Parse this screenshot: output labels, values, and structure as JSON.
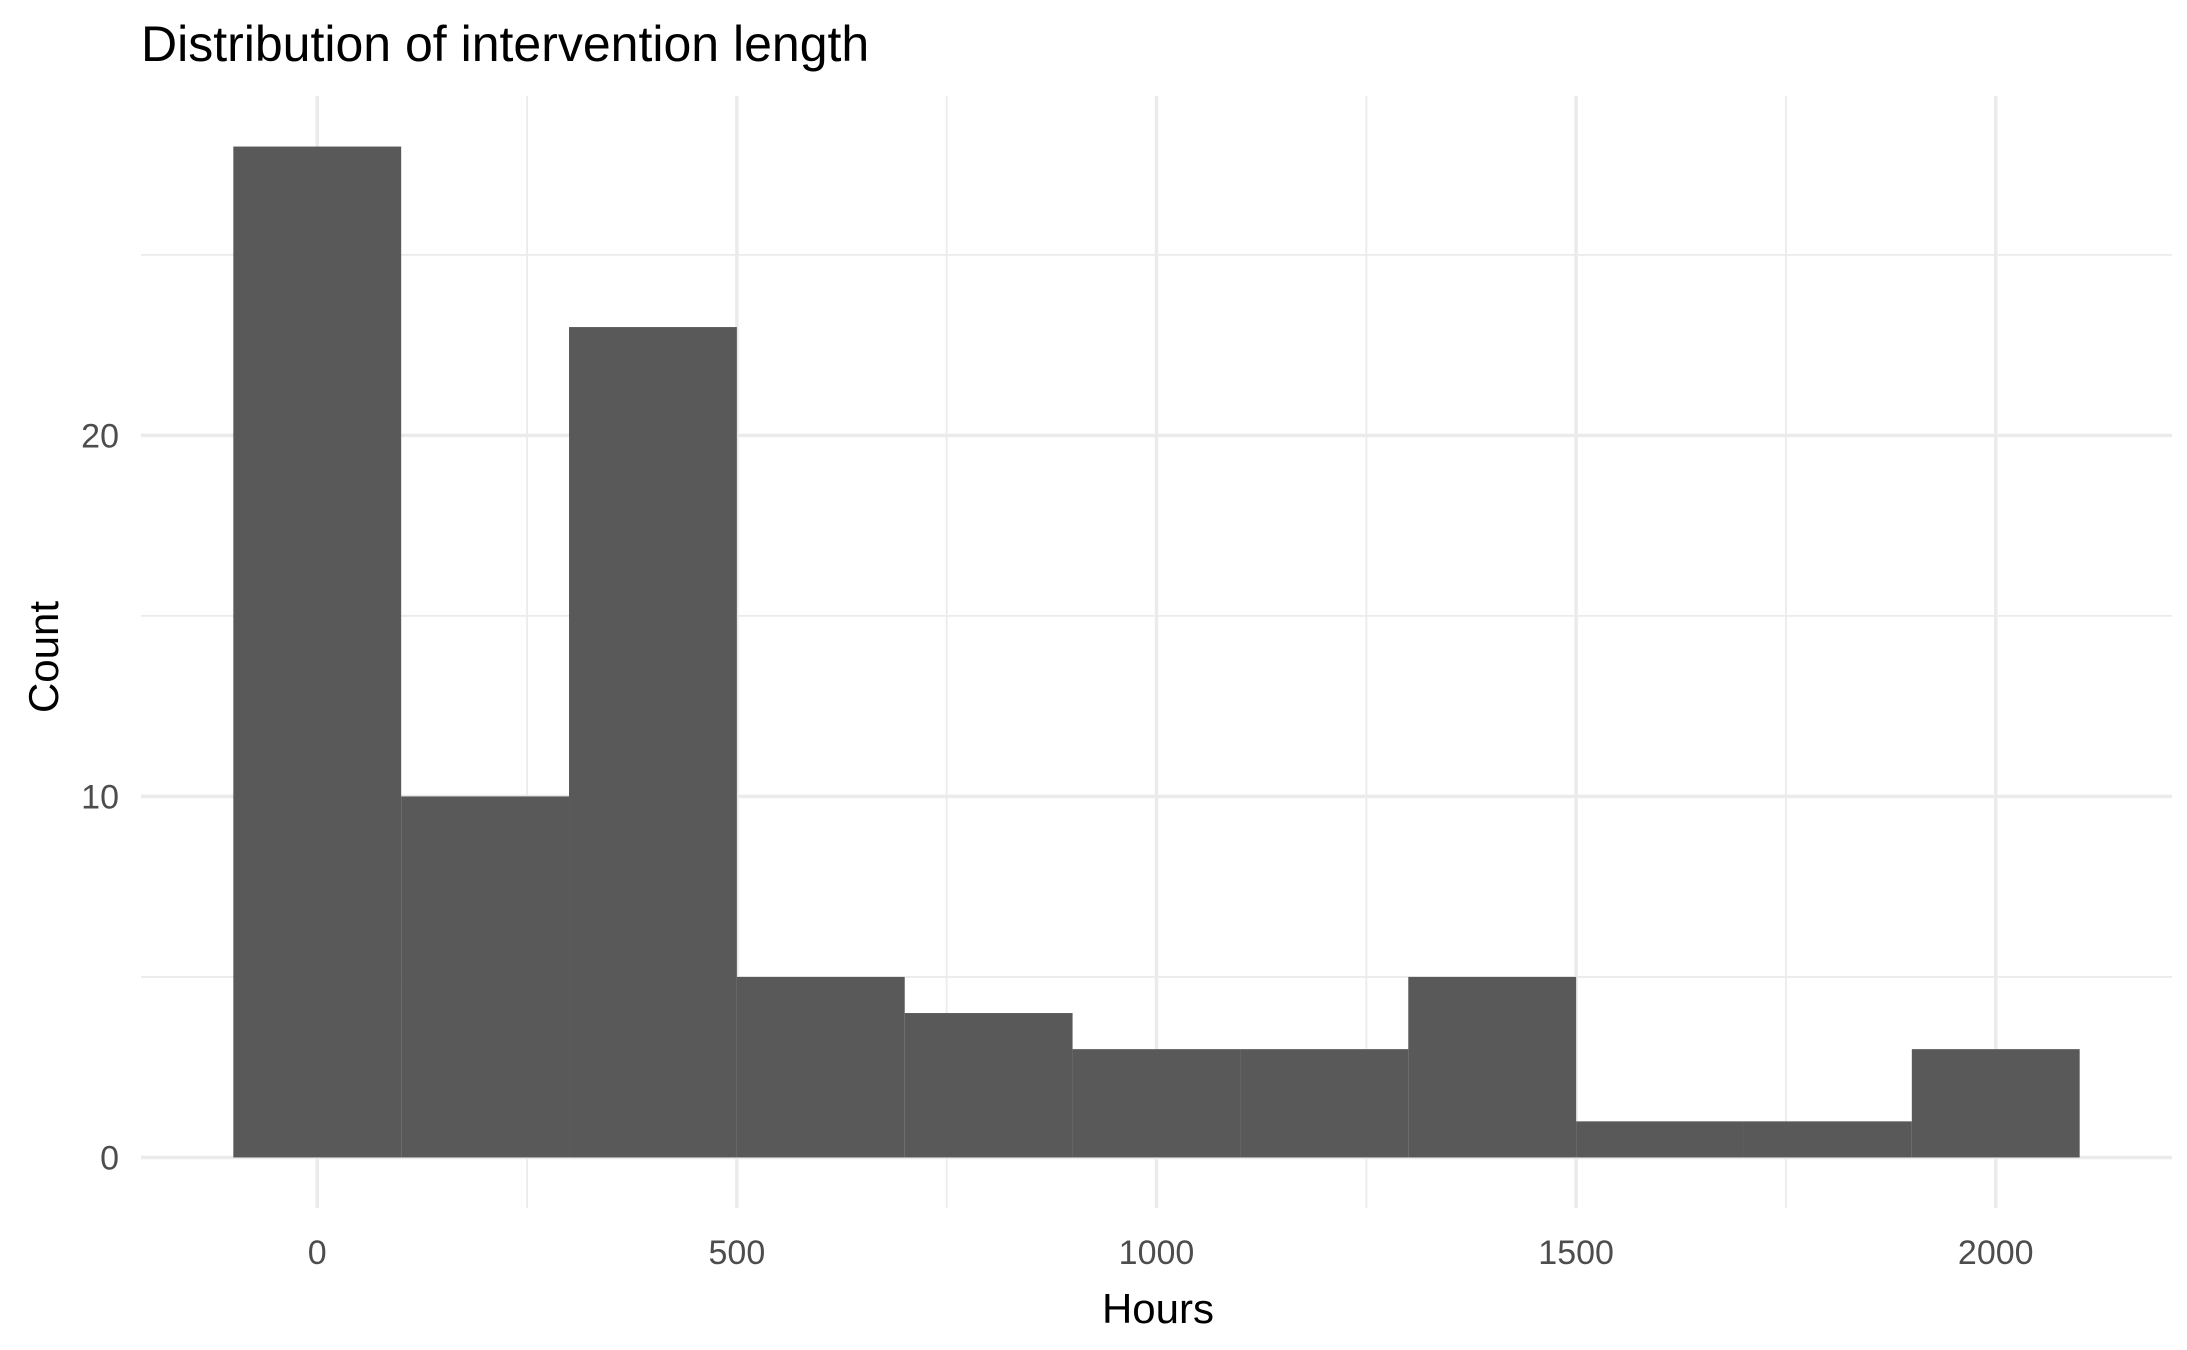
{
  "chart_data": {
    "type": "bar",
    "title": "Distribution of intervention length",
    "xlabel": "Hours",
    "ylabel": "Count",
    "bin_width": 200,
    "bins": [
      {
        "x_start": -100,
        "x_end": 100,
        "count": 28
      },
      {
        "x_start": 100,
        "x_end": 300,
        "count": 10
      },
      {
        "x_start": 300,
        "x_end": 500,
        "count": 23
      },
      {
        "x_start": 500,
        "x_end": 700,
        "count": 5
      },
      {
        "x_start": 700,
        "x_end": 900,
        "count": 4
      },
      {
        "x_start": 900,
        "x_end": 1100,
        "count": 3
      },
      {
        "x_start": 1100,
        "x_end": 1300,
        "count": 3
      },
      {
        "x_start": 1300,
        "x_end": 1500,
        "count": 5
      },
      {
        "x_start": 1500,
        "x_end": 1700,
        "count": 1
      },
      {
        "x_start": 1700,
        "x_end": 1900,
        "count": 1
      },
      {
        "x_start": 1900,
        "x_end": 2100,
        "count": 3
      }
    ],
    "x_ticks": [
      0,
      500,
      1000,
      1500,
      2000
    ],
    "x_tick_labels": [
      "0",
      "500",
      "1000",
      "1500",
      "2000"
    ],
    "y_ticks": [
      0,
      10,
      20
    ],
    "y_tick_labels": [
      "0",
      "10",
      "20"
    ],
    "xlim": [
      -210,
      2210
    ],
    "ylim": [
      -1.4,
      29.4
    ],
    "bar_color": "#595959",
    "grid": true,
    "legend": "none"
  }
}
